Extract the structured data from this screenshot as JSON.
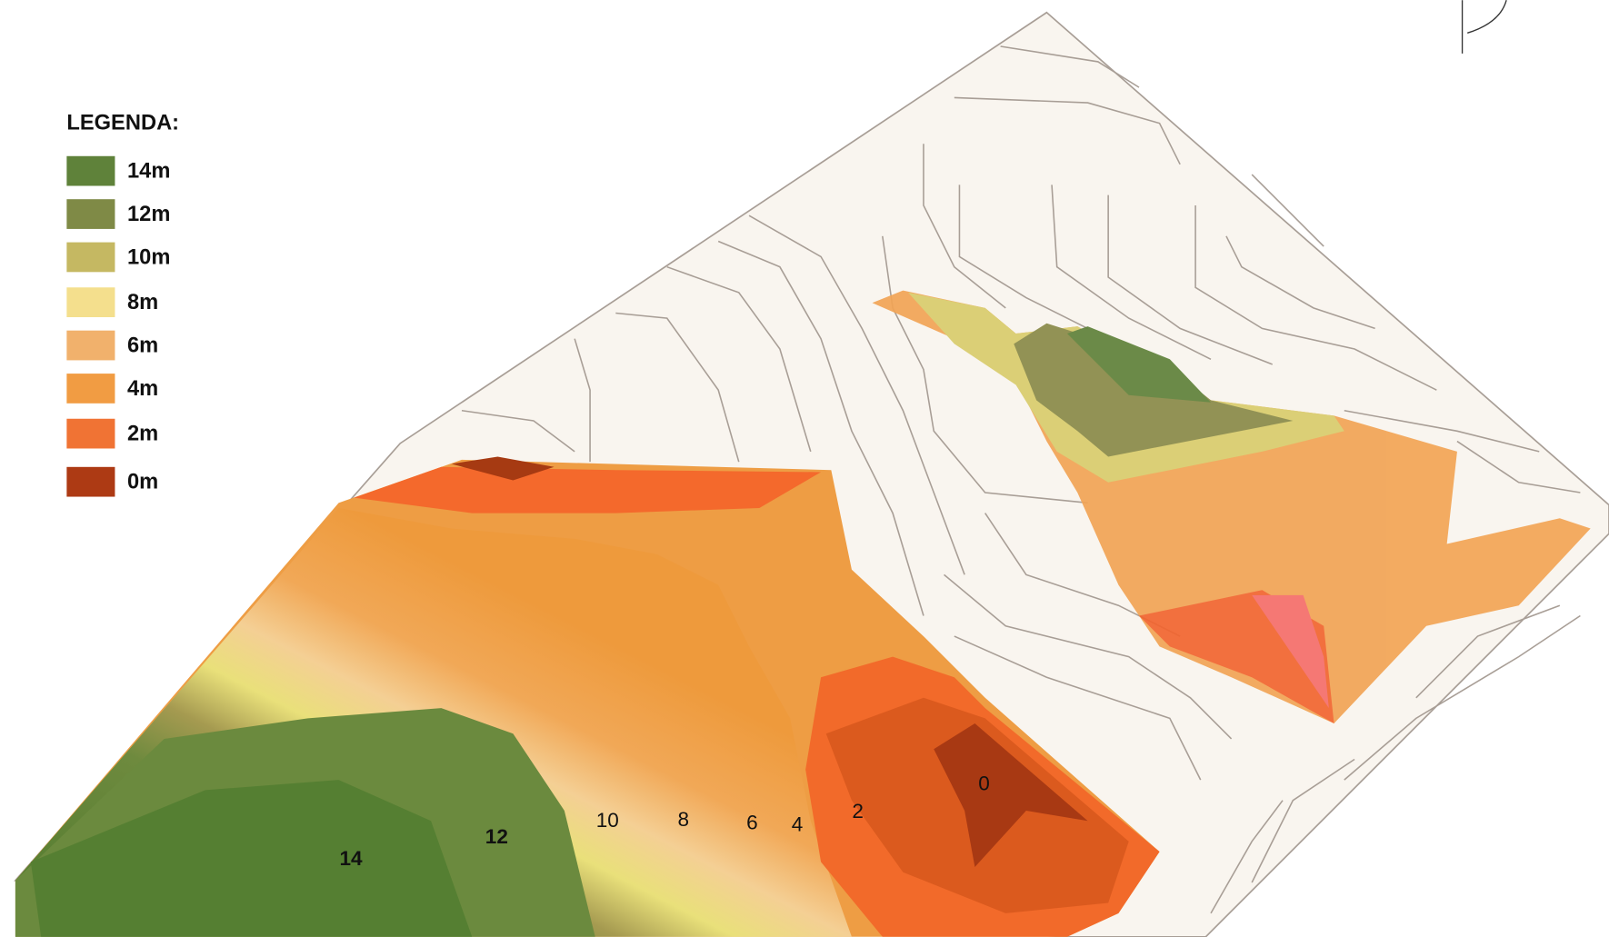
{
  "legend": {
    "title": "LEGENDA:",
    "items": [
      {
        "label": "14m",
        "color": "#5f823a"
      },
      {
        "label": "12m",
        "color": "#7f8a46"
      },
      {
        "label": "10m",
        "color": "#c5b862"
      },
      {
        "label": "8m",
        "color": "#f4df8d"
      },
      {
        "label": "6m",
        "color": "#f1b16c"
      },
      {
        "label": "4m",
        "color": "#f19c43"
      },
      {
        "label": "2m",
        "color": "#f07334"
      },
      {
        "label": "0m",
        "color": "#ad3a14"
      }
    ]
  },
  "contour_labels": [
    "14",
    "12",
    "10",
    "8",
    "6",
    "4",
    "2",
    "0"
  ]
}
